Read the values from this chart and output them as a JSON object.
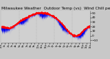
{
  "title": "Milwaukee Weather  Outdoor Temp (vs)  Wind Chill per Minute (Last 24 Hours)",
  "title_fontsize": 4.2,
  "bg_color": "#c8c8c8",
  "plot_bg_color": "#d0d0d0",
  "blue_color": "#0000ee",
  "red_color": "#ff0000",
  "ylim": [
    -15,
    55
  ],
  "yticks": [
    -10,
    0,
    10,
    20,
    30,
    40,
    50
  ],
  "ytick_fontsize": 3.2,
  "xtick_fontsize": 2.5,
  "n_points": 1440,
  "grid_color": "#999999",
  "num_vgrid": 4
}
